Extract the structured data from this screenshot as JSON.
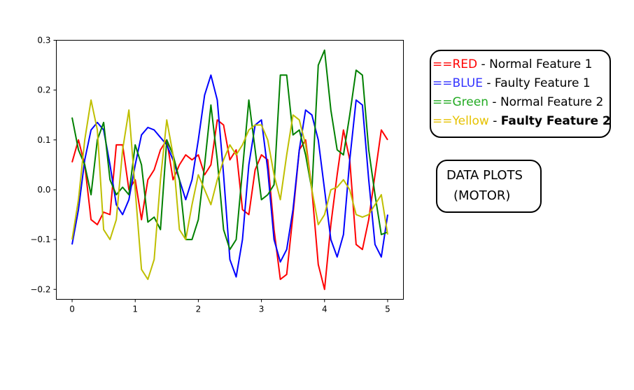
{
  "chart_data": {
    "type": "line",
    "title": "",
    "xlabel": "",
    "ylabel": "",
    "xlim": [
      -0.25,
      5.25
    ],
    "ylim": [
      -0.22,
      0.3
    ],
    "xticks": [
      0,
      1,
      2,
      3,
      4,
      5
    ],
    "xtick_labels": [
      "0",
      "1",
      "2",
      "3",
      "4",
      "5"
    ],
    "yticks": [
      -0.2,
      -0.1,
      0.0,
      0.1,
      0.2,
      0.3
    ],
    "ytick_labels": [
      "−0.2",
      "−0.1",
      "0.0",
      "0.1",
      "0.2",
      "0.3"
    ],
    "grid": false,
    "series": [
      {
        "color": "#ff0000",
        "x": [
          0,
          0.1,
          0.2,
          0.3,
          0.4,
          0.5,
          0.6,
          0.7,
          0.8,
          0.9,
          1.0,
          1.1,
          1.2,
          1.3,
          1.4,
          1.5,
          1.6,
          1.7,
          1.8,
          1.9,
          2.0,
          2.1,
          2.2,
          2.3,
          2.4,
          2.5,
          2.6,
          2.7,
          2.8,
          2.9,
          3.0,
          3.1,
          3.2,
          3.3,
          3.4,
          3.5,
          3.6,
          3.7,
          3.8,
          3.9,
          4.0,
          4.1,
          4.2,
          4.3,
          4.4,
          4.5,
          4.6,
          4.7,
          4.8,
          4.9,
          5.0
        ],
        "values": [
          0.055,
          0.1,
          0.05,
          -0.06,
          -0.07,
          -0.045,
          -0.05,
          0.09,
          0.09,
          0.0,
          0.02,
          -0.06,
          0.02,
          0.04,
          0.08,
          0.1,
          0.02,
          0.05,
          0.07,
          0.06,
          0.07,
          0.03,
          0.05,
          0.14,
          0.13,
          0.06,
          0.08,
          -0.04,
          -0.05,
          0.04,
          0.07,
          0.06,
          -0.08,
          -0.18,
          -0.17,
          -0.05,
          0.08,
          0.1,
          0.0,
          -0.15,
          -0.2,
          -0.07,
          0.03,
          0.12,
          0.06,
          -0.11,
          -0.12,
          -0.06,
          0.03,
          0.12,
          0.1
        ]
      },
      {
        "color": "#0000ff",
        "x": [
          0,
          0.1,
          0.2,
          0.3,
          0.4,
          0.5,
          0.6,
          0.7,
          0.8,
          0.9,
          1.0,
          1.1,
          1.2,
          1.3,
          1.4,
          1.5,
          1.6,
          1.7,
          1.8,
          1.9,
          2.0,
          2.1,
          2.2,
          2.3,
          2.4,
          2.5,
          2.6,
          2.7,
          2.8,
          2.9,
          3.0,
          3.1,
          3.2,
          3.3,
          3.4,
          3.5,
          3.6,
          3.7,
          3.8,
          3.9,
          4.0,
          4.1,
          4.2,
          4.3,
          4.4,
          4.5,
          4.6,
          4.7,
          4.8,
          4.9,
          5.0
        ],
        "values": [
          -0.11,
          -0.04,
          0.06,
          0.12,
          0.135,
          0.12,
          0.05,
          -0.03,
          -0.05,
          -0.02,
          0.05,
          0.11,
          0.125,
          0.12,
          0.105,
          0.09,
          0.06,
          0.02,
          -0.02,
          0.02,
          0.1,
          0.19,
          0.23,
          0.18,
          0.03,
          -0.14,
          -0.175,
          -0.1,
          0.05,
          0.13,
          0.14,
          0.04,
          -0.1,
          -0.145,
          -0.12,
          -0.04,
          0.08,
          0.16,
          0.15,
          0.1,
          0.0,
          -0.1,
          -0.135,
          -0.09,
          0.06,
          0.18,
          0.17,
          0.02,
          -0.11,
          -0.135,
          -0.05
        ]
      },
      {
        "color": "#008000",
        "x": [
          0,
          0.1,
          0.2,
          0.3,
          0.4,
          0.5,
          0.6,
          0.7,
          0.8,
          0.9,
          1.0,
          1.1,
          1.2,
          1.3,
          1.4,
          1.5,
          1.6,
          1.7,
          1.8,
          1.9,
          2.0,
          2.1,
          2.2,
          2.3,
          2.4,
          2.5,
          2.6,
          2.7,
          2.8,
          2.9,
          3.0,
          3.1,
          3.2,
          3.3,
          3.4,
          3.5,
          3.6,
          3.7,
          3.8,
          3.9,
          4.0,
          4.1,
          4.2,
          4.3,
          4.4,
          4.5,
          4.6,
          4.7,
          4.8,
          4.9,
          5.0
        ],
        "values": [
          0.145,
          0.08,
          0.05,
          -0.01,
          0.1,
          0.135,
          0.02,
          -0.01,
          0.005,
          -0.01,
          0.09,
          0.05,
          -0.065,
          -0.055,
          -0.08,
          0.1,
          0.07,
          0.02,
          -0.1,
          -0.1,
          -0.06,
          0.05,
          0.17,
          0.06,
          -0.08,
          -0.12,
          -0.1,
          0.04,
          0.18,
          0.08,
          -0.02,
          -0.01,
          0.01,
          0.23,
          0.23,
          0.11,
          0.12,
          0.07,
          0.0,
          0.25,
          0.28,
          0.16,
          0.08,
          0.07,
          0.15,
          0.24,
          0.23,
          0.08,
          -0.01,
          -0.09,
          -0.085
        ]
      },
      {
        "color": "#bfbf00",
        "x": [
          0,
          0.1,
          0.2,
          0.3,
          0.4,
          0.5,
          0.6,
          0.7,
          0.8,
          0.9,
          1.0,
          1.1,
          1.2,
          1.3,
          1.4,
          1.5,
          1.6,
          1.7,
          1.8,
          1.9,
          2.0,
          2.1,
          2.2,
          2.3,
          2.4,
          2.5,
          2.6,
          2.7,
          2.8,
          2.9,
          3.0,
          3.1,
          3.2,
          3.3,
          3.4,
          3.5,
          3.6,
          3.7,
          3.8,
          3.9,
          4.0,
          4.1,
          4.2,
          4.3,
          4.4,
          4.5,
          4.6,
          4.7,
          4.8,
          4.9,
          5.0
        ],
        "values": [
          -0.1,
          -0.02,
          0.1,
          0.18,
          0.12,
          -0.08,
          -0.1,
          -0.06,
          0.08,
          0.16,
          0.0,
          -0.16,
          -0.18,
          -0.14,
          0.02,
          0.14,
          0.07,
          -0.08,
          -0.1,
          -0.03,
          0.03,
          0.0,
          -0.03,
          0.02,
          0.06,
          0.09,
          0.07,
          0.09,
          0.12,
          0.13,
          0.13,
          0.1,
          0.03,
          -0.02,
          0.07,
          0.15,
          0.14,
          0.09,
          0.0,
          -0.07,
          -0.05,
          0.0,
          0.005,
          0.02,
          0.0,
          -0.05,
          -0.055,
          -0.05,
          -0.03,
          -0.01,
          -0.09
        ]
      }
    ]
  },
  "legend": {
    "items": [
      {
        "prefix": "==RED",
        "prefix_color": "#ff0000",
        "sep": " - ",
        "label": "Normal Feature 1",
        "bold": false
      },
      {
        "prefix": "==BLUE",
        "prefix_color": "#3333ff",
        "sep": " - ",
        "label": "Faulty Feature 1",
        "bold": false
      },
      {
        "prefix": "==Green",
        "prefix_color": "#22aa22",
        "sep": " - ",
        "label": "Normal Feature 2",
        "bold": false
      },
      {
        "prefix": "==Yellow",
        "prefix_color": "#e6c200",
        "sep": " - ",
        "label": "Faulty Feature 2",
        "bold": true
      }
    ]
  },
  "note": {
    "line1": "DATA PLOTS",
    "line2": "(MOTOR)"
  }
}
